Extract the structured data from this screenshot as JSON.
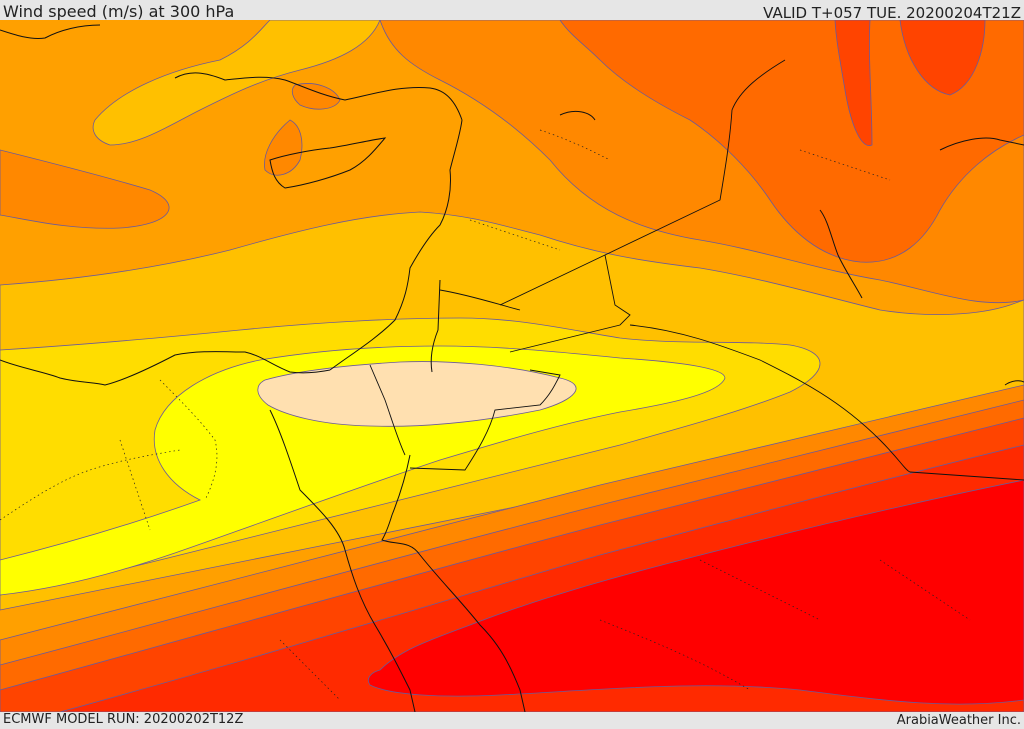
{
  "header": {
    "title": "Wind speed (m/s) at 300 hPa",
    "valid": "VALID T+057 TUE. 20200204T21Z"
  },
  "footer": {
    "model_run": "ECMWF MODEL RUN: 20200202T12Z",
    "credit": "ArabiaWeather Inc."
  },
  "colors": {
    "band_slowest": "#ffe0b0",
    "band_very_slow": "#ffff00",
    "band_slow": "#ffdd00",
    "band_mid_low": "#ffc000",
    "band_mid": "#ffa000",
    "band_mid_high": "#ff8800",
    "band_high": "#ff6a00",
    "band_very_high": "#ff4400",
    "band_jet_edge": "#ff2a00",
    "band_jet_core": "#ff0000",
    "contour": "#6b5a9a",
    "coast": "#111111"
  }
}
